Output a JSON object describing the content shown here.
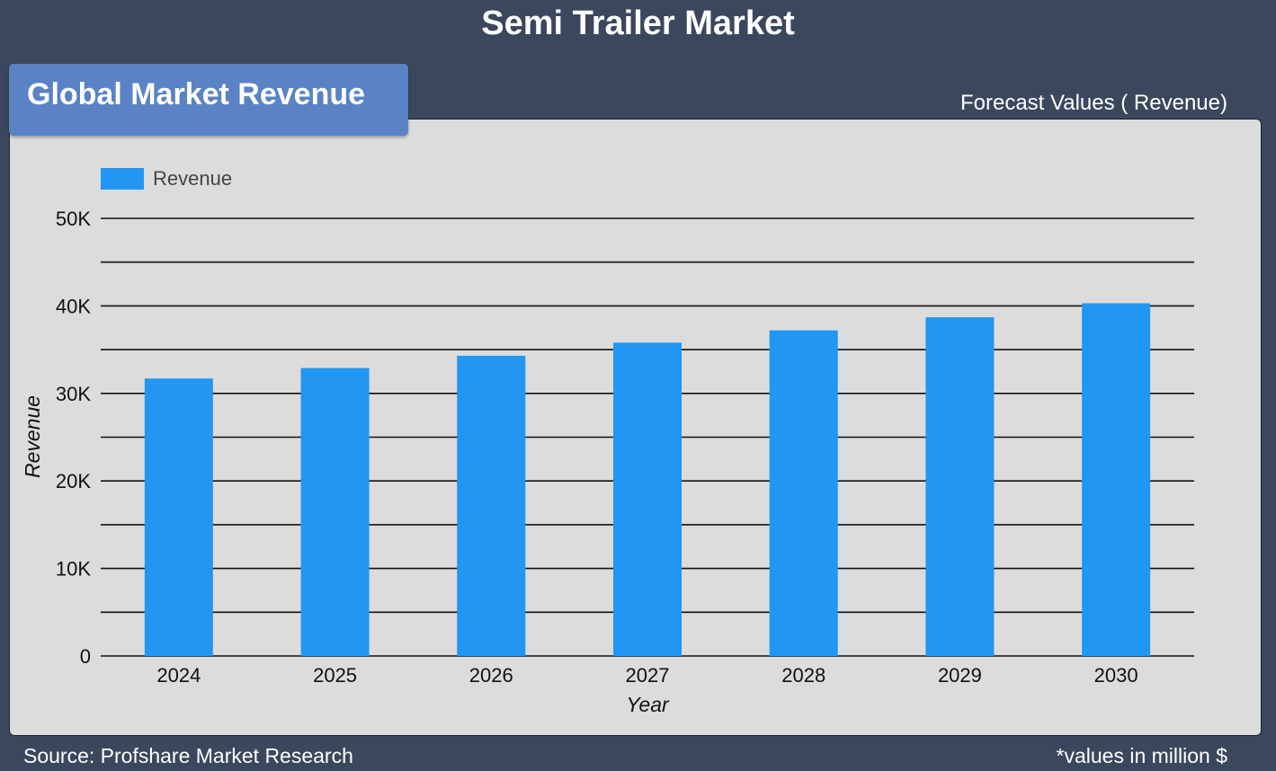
{
  "header": {
    "title": "Semi Trailer Market",
    "badge": "Global Market Revenue",
    "subtitle": "Forecast Values ( Revenue)"
  },
  "footer": {
    "source": "Source: Profshare Market Research",
    "note": "*values in million $"
  },
  "colors": {
    "background": "#3b475c",
    "panel": "#dcdcdc",
    "badge": "#5983c4",
    "bar": "#2196f3",
    "grid": "#111111"
  },
  "chart_data": {
    "type": "bar",
    "categories": [
      "2024",
      "2025",
      "2026",
      "2027",
      "2028",
      "2029",
      "2030"
    ],
    "series": [
      {
        "name": "Revenue",
        "values": [
          31700,
          32900,
          34300,
          35800,
          37200,
          38700,
          40300
        ]
      }
    ],
    "xlabel": "Year",
    "ylabel": "Revenue",
    "ylim": [
      0,
      50000
    ],
    "yticks": [
      {
        "value": 0,
        "label": "0"
      },
      {
        "value": 10000,
        "label": "10K"
      },
      {
        "value": 20000,
        "label": "20K"
      },
      {
        "value": 30000,
        "label": "30K"
      },
      {
        "value": 40000,
        "label": "40K"
      },
      {
        "value": 50000,
        "label": "50K"
      }
    ],
    "minor_gridlines": [
      5000,
      15000,
      25000,
      35000,
      45000
    ],
    "legend": "top-left",
    "grid": true
  }
}
